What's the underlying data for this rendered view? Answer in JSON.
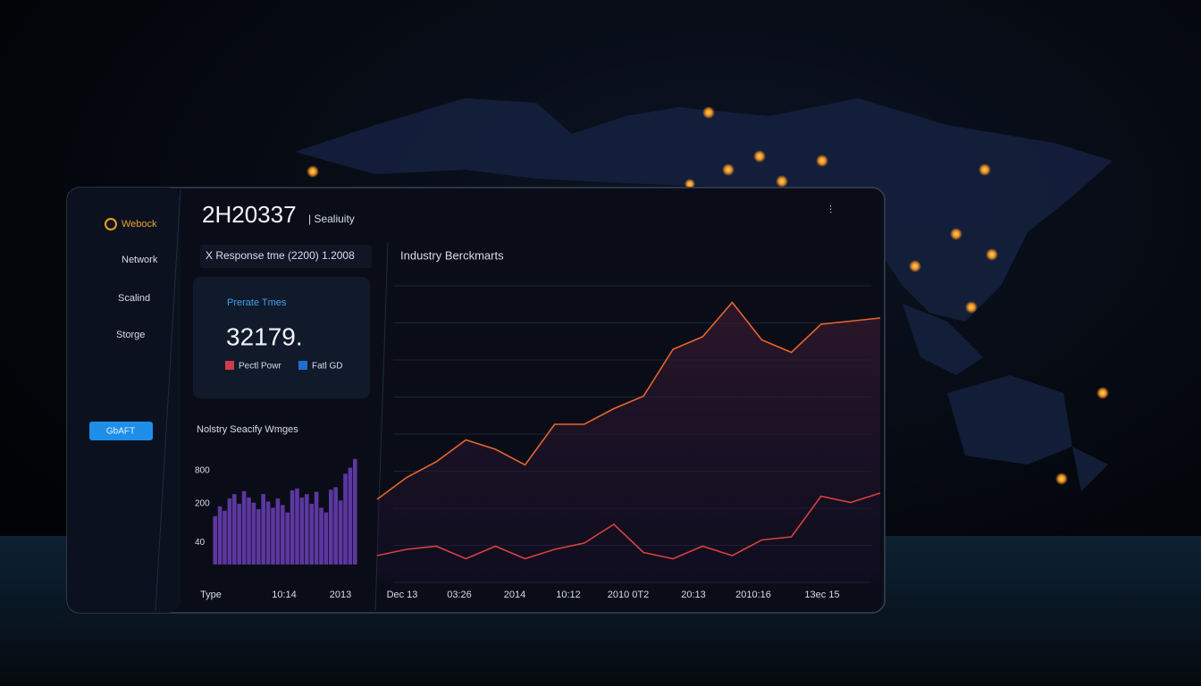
{
  "sidebar": {
    "brand": "Webock",
    "items": [
      "Network",
      "Scalind",
      "Storge"
    ],
    "button": "GbAFT"
  },
  "header": {
    "title": "2H20337",
    "subtitle": "| Sealiuity"
  },
  "filter": "X Response tme (2200) 1.2008",
  "stat_card": {
    "label": "Prerate Tmes",
    "value": "32179.",
    "legend": [
      {
        "name": "Pectl Powr",
        "color": "#d23a4a"
      },
      {
        "name": "Fatl GD",
        "color": "#1f6fd0"
      }
    ]
  },
  "bar_chart": {
    "type": "bar",
    "title": "Nolstry Seacify Wmges",
    "log_scale": true,
    "ylim": [
      16,
      1800
    ],
    "yticks": [
      800,
      200,
      40
    ],
    "x_labels": [
      "Type",
      "10:14",
      "2013"
    ],
    "color": "#6b3fb8",
    "values": [
      120,
      180,
      150,
      250,
      300,
      200,
      340,
      260,
      210,
      160,
      300,
      220,
      170,
      250,
      190,
      140,
      350,
      380,
      260,
      300,
      200,
      330,
      170,
      140,
      360,
      400,
      230,
      700,
      900,
      1300
    ]
  },
  "line_chart": {
    "type": "line",
    "title": "Industry Berckmarts",
    "ylim": [
      0,
      100
    ],
    "grid": true,
    "x_labels": [
      "Dec 13",
      "03:26",
      "2014",
      "10:12",
      "2010 0T2",
      "20:13",
      "2010:16",
      "13ec 15"
    ],
    "series": [
      {
        "color": "#e8652a",
        "values": [
          26,
          33,
          38,
          45,
          42,
          37,
          50,
          50,
          55,
          59,
          74,
          78,
          89,
          77,
          73,
          82,
          83,
          84
        ]
      },
      {
        "color": "#d9403a",
        "values": [
          8,
          10,
          11,
          7,
          11,
          7,
          10,
          12,
          18,
          9,
          7,
          11,
          8,
          13,
          14,
          27,
          25,
          28
        ]
      }
    ]
  }
}
